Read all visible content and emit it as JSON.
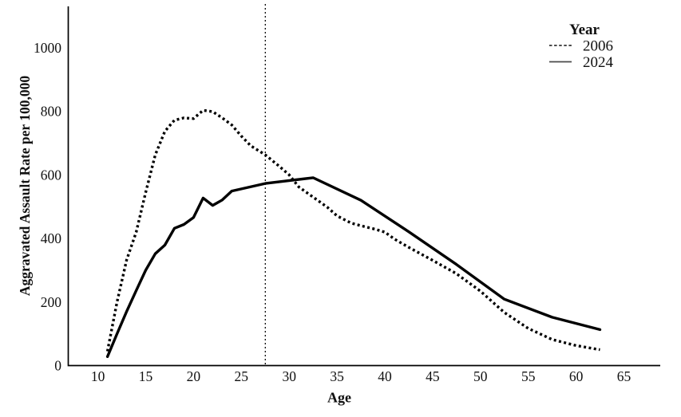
{
  "figure": {
    "background": "#ffffff",
    "line_color": "#000000"
  },
  "chart_data": {
    "type": "line",
    "title": "",
    "xlabel": "Age",
    "ylabel": "Aggravated Assault Rate per 100,000",
    "x_ticks": [
      10,
      15,
      20,
      25,
      30,
      35,
      40,
      45,
      50,
      55,
      60,
      65
    ],
    "y_ticks": [
      0,
      200,
      400,
      600,
      800,
      1000
    ],
    "xlim": [
      6.9,
      68.8
    ],
    "ylim": [
      0,
      1130
    ],
    "grid": false,
    "legend": {
      "title": "Year",
      "position": "top-right",
      "entries": [
        {
          "label": "2006",
          "style": "dotted"
        },
        {
          "label": "2024",
          "style": "solid"
        }
      ]
    },
    "reference_line": {
      "axis": "x",
      "value": 27.5,
      "style": "dashed",
      "color": "#000000"
    },
    "series": [
      {
        "name": "2006",
        "style": "dotted",
        "color": "#000000",
        "points": [
          [
            11,
            45
          ],
          [
            12,
            200
          ],
          [
            13,
            332
          ],
          [
            14,
            420
          ],
          [
            15,
            545
          ],
          [
            16,
            663
          ],
          [
            17,
            737
          ],
          [
            18,
            772
          ],
          [
            19,
            779
          ],
          [
            20,
            777
          ],
          [
            21,
            803
          ],
          [
            22,
            799
          ],
          [
            23,
            779
          ],
          [
            24,
            757
          ],
          [
            25,
            722
          ],
          [
            26,
            691
          ],
          [
            27.5,
            663
          ],
          [
            29,
            626
          ],
          [
            30,
            600
          ],
          [
            31,
            562
          ],
          [
            32.5,
            530
          ],
          [
            34,
            498
          ],
          [
            35,
            471
          ],
          [
            36.5,
            448
          ],
          [
            37.5,
            440
          ],
          [
            39,
            429
          ],
          [
            40,
            420
          ],
          [
            41,
            398
          ],
          [
            42.5,
            372
          ],
          [
            45,
            331
          ],
          [
            47.5,
            289
          ],
          [
            50,
            234
          ],
          [
            52.5,
            167
          ],
          [
            55,
            117
          ],
          [
            57.5,
            82
          ],
          [
            60,
            63
          ],
          [
            62.5,
            50
          ]
        ]
      },
      {
        "name": "2024",
        "style": "solid",
        "color": "#000000",
        "points": [
          [
            11,
            28
          ],
          [
            12,
            100
          ],
          [
            13,
            170
          ],
          [
            14,
            236
          ],
          [
            15,
            300
          ],
          [
            16,
            352
          ],
          [
            17,
            379
          ],
          [
            18,
            432
          ],
          [
            19,
            444
          ],
          [
            20,
            466
          ],
          [
            21,
            527
          ],
          [
            22,
            504
          ],
          [
            23,
            521
          ],
          [
            24,
            549
          ],
          [
            27.5,
            573
          ],
          [
            32.5,
            591
          ],
          [
            37.5,
            520
          ],
          [
            42.5,
            421
          ],
          [
            47.5,
            318
          ],
          [
            52.5,
            209
          ],
          [
            57.5,
            152
          ],
          [
            62.5,
            113
          ]
        ]
      }
    ]
  }
}
